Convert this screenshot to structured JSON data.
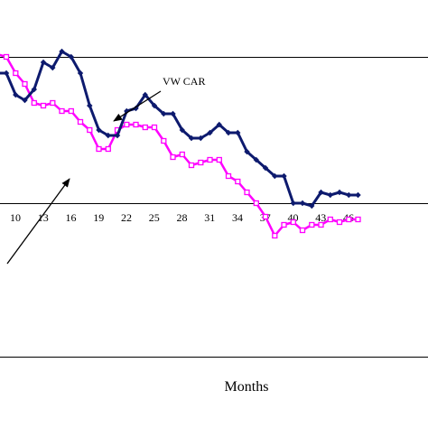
{
  "chart_data": {
    "type": "line",
    "xlabel": "Months",
    "ylabel": "",
    "title": "",
    "x_tick_labels": [
      "10",
      "13",
      "16",
      "19",
      "22",
      "25",
      "28",
      "31",
      "34",
      "37",
      "40",
      "43",
      "46"
    ],
    "x": [
      7,
      8,
      9,
      10,
      11,
      12,
      13,
      14,
      15,
      16,
      17,
      18,
      19,
      20,
      21,
      22,
      23,
      24,
      25,
      26,
      27,
      28,
      29,
      30,
      31,
      32,
      33,
      34,
      35,
      36,
      37,
      38,
      39,
      40,
      41,
      42,
      43,
      44,
      45,
      46,
      47,
      48
    ],
    "xlim": [
      7,
      48
    ],
    "ylim": [
      0,
      100
    ],
    "grid": false,
    "annotations": [
      "VW CAR"
    ],
    "series": [
      {
        "name": "VW CAR",
        "color": "#0d1a6e",
        "marker": "diamond",
        "values": [
          72,
          70,
          68,
          68,
          60,
          58,
          62,
          72,
          70,
          76,
          74,
          68,
          56,
          47,
          45,
          45,
          54,
          55,
          60,
          56,
          53,
          53,
          47,
          44,
          44,
          46,
          49,
          46,
          46,
          39,
          36,
          33,
          30,
          30,
          20,
          20,
          19,
          24,
          23,
          24,
          23,
          23
        ]
      },
      {
        "name": "",
        "color": "#ff00ff",
        "marker": "square",
        "values": [
          80,
          80,
          75,
          74,
          68,
          64,
          57,
          56,
          57,
          54,
          54,
          50,
          47,
          40,
          40,
          47,
          49,
          49,
          48,
          48,
          43,
          37,
          38,
          34,
          35,
          36,
          36,
          30,
          28,
          24,
          20,
          15,
          8,
          12,
          13,
          10,
          12,
          12,
          14,
          13,
          14,
          14
        ]
      }
    ]
  }
}
